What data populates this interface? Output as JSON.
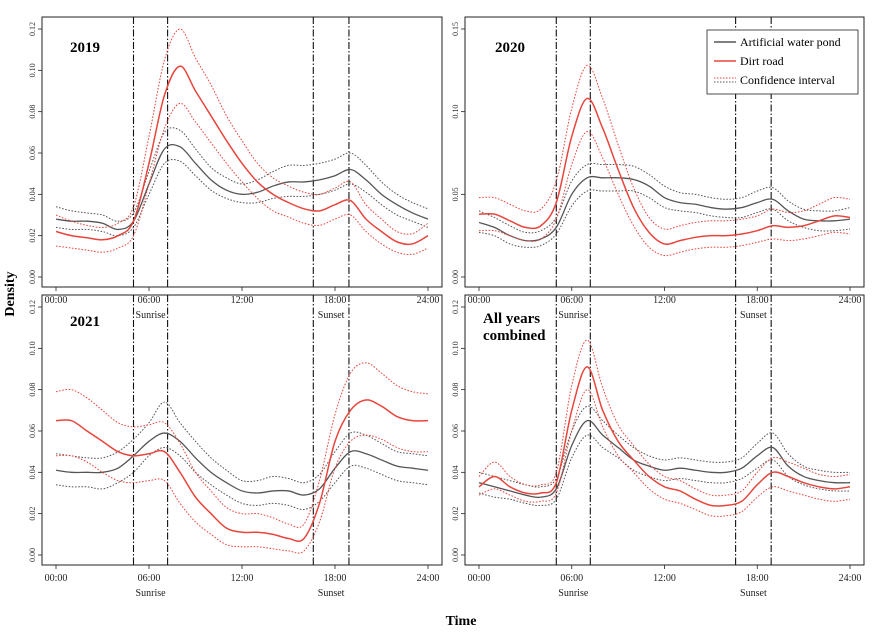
{
  "figure": {
    "ylabel": "Density",
    "xlabel": "Time"
  },
  "legend": {
    "entries": [
      {
        "label": "Artificial water pond",
        "color": "#555555",
        "style": "solid"
      },
      {
        "label": "Dirt road",
        "color": "#e8453c",
        "style": "solid"
      },
      {
        "label": "Confidence interval",
        "color": "#e8453c",
        "style": "dotted"
      }
    ]
  },
  "chart_data": [
    {
      "type": "line",
      "title": "2019",
      "xlabel": "",
      "ylabel": "Density",
      "xlim": [
        0,
        24
      ],
      "ylim": [
        0,
        0.12
      ],
      "yticks": [
        0.0,
        0.02,
        0.04,
        0.06,
        0.08,
        0.1,
        0.12
      ],
      "ytick_labels": [
        "0.00",
        "0.02",
        "0.04",
        "0.06",
        "0.08",
        "0.10",
        "0.12"
      ],
      "x_ticks": [
        0,
        6,
        12,
        18,
        24
      ],
      "x_tick_labels": [
        "00:00",
        "06:00",
        "12:00",
        "18:00",
        "24:00"
      ],
      "vlines": [
        5.0,
        7.2,
        16.6,
        18.9
      ],
      "vline_labels": [
        {
          "x": 6.1,
          "label": "Sunrise"
        },
        {
          "x": 17.75,
          "label": "Sunset"
        }
      ],
      "x": [
        0,
        1,
        2,
        3,
        4,
        5,
        6,
        7,
        8,
        9,
        10,
        11,
        12,
        13,
        14,
        15,
        16,
        17,
        18,
        19,
        20,
        21,
        22,
        23,
        24
      ],
      "series": [
        {
          "name": "Artificial water pond",
          "values": [
            0.028,
            0.027,
            0.027,
            0.026,
            0.023,
            0.027,
            0.045,
            0.062,
            0.063,
            0.055,
            0.047,
            0.042,
            0.04,
            0.041,
            0.044,
            0.046,
            0.046,
            0.047,
            0.049,
            0.052,
            0.047,
            0.04,
            0.035,
            0.031,
            0.028
          ]
        },
        {
          "name": "Artificial water pond CI lower",
          "values": [
            0.024,
            0.023,
            0.023,
            0.022,
            0.02,
            0.024,
            0.04,
            0.055,
            0.056,
            0.049,
            0.042,
            0.038,
            0.036,
            0.036,
            0.038,
            0.039,
            0.039,
            0.04,
            0.042,
            0.045,
            0.041,
            0.035,
            0.03,
            0.027,
            0.024
          ]
        },
        {
          "name": "Artificial water pond CI upper",
          "values": [
            0.034,
            0.032,
            0.031,
            0.03,
            0.027,
            0.031,
            0.051,
            0.07,
            0.071,
            0.062,
            0.053,
            0.048,
            0.045,
            0.047,
            0.051,
            0.054,
            0.054,
            0.055,
            0.057,
            0.06,
            0.054,
            0.046,
            0.04,
            0.036,
            0.033
          ]
        },
        {
          "name": "Dirt road",
          "values": [
            0.022,
            0.02,
            0.019,
            0.018,
            0.02,
            0.027,
            0.055,
            0.088,
            0.102,
            0.09,
            0.078,
            0.066,
            0.055,
            0.046,
            0.04,
            0.036,
            0.033,
            0.032,
            0.035,
            0.037,
            0.028,
            0.022,
            0.017,
            0.016,
            0.02
          ]
        },
        {
          "name": "Dirt road CI lower",
          "values": [
            0.015,
            0.014,
            0.013,
            0.012,
            0.014,
            0.02,
            0.045,
            0.072,
            0.084,
            0.075,
            0.065,
            0.055,
            0.046,
            0.038,
            0.032,
            0.029,
            0.026,
            0.025,
            0.028,
            0.03,
            0.022,
            0.016,
            0.012,
            0.011,
            0.014
          ]
        },
        {
          "name": "Dirt road CI upper",
          "values": [
            0.03,
            0.027,
            0.025,
            0.024,
            0.026,
            0.034,
            0.068,
            0.105,
            0.12,
            0.106,
            0.093,
            0.078,
            0.066,
            0.055,
            0.048,
            0.044,
            0.041,
            0.04,
            0.043,
            0.046,
            0.035,
            0.028,
            0.022,
            0.021,
            0.026
          ]
        }
      ]
    },
    {
      "type": "line",
      "title": "2020",
      "xlabel": "",
      "ylabel": "",
      "xlim": [
        0,
        24
      ],
      "ylim": [
        0,
        0.15
      ],
      "yticks": [
        0.0,
        0.05,
        0.1,
        0.15
      ],
      "ytick_labels": [
        "0.00",
        "0.05",
        "0.10",
        "0.15"
      ],
      "x_ticks": [
        0,
        6,
        12,
        18,
        24
      ],
      "x_tick_labels": [
        "00:00",
        "06:00",
        "12:00",
        "18:00",
        "24:00"
      ],
      "vlines": [
        5.0,
        7.2,
        16.6,
        18.9
      ],
      "vline_labels": [
        {
          "x": 6.1,
          "label": "Sunrise"
        },
        {
          "x": 17.75,
          "label": "Sunset"
        }
      ],
      "x": [
        0,
        1,
        2,
        3,
        4,
        5,
        6,
        7,
        8,
        9,
        10,
        11,
        12,
        13,
        14,
        15,
        16,
        17,
        18,
        19,
        20,
        21,
        22,
        23,
        24
      ],
      "series": [
        {
          "name": "Artificial water pond",
          "values": [
            0.033,
            0.03,
            0.025,
            0.022,
            0.023,
            0.03,
            0.05,
            0.06,
            0.06,
            0.06,
            0.059,
            0.055,
            0.048,
            0.045,
            0.044,
            0.042,
            0.041,
            0.042,
            0.045,
            0.047,
            0.04,
            0.035,
            0.034,
            0.034,
            0.035
          ]
        },
        {
          "name": "Artificial water pond CI lower",
          "values": [
            0.027,
            0.025,
            0.02,
            0.018,
            0.019,
            0.026,
            0.043,
            0.052,
            0.052,
            0.052,
            0.052,
            0.048,
            0.042,
            0.04,
            0.039,
            0.037,
            0.036,
            0.036,
            0.039,
            0.041,
            0.034,
            0.03,
            0.028,
            0.028,
            0.029
          ]
        },
        {
          "name": "Artificial water pond CI upper",
          "values": [
            0.04,
            0.036,
            0.031,
            0.027,
            0.028,
            0.036,
            0.058,
            0.068,
            0.068,
            0.068,
            0.067,
            0.062,
            0.055,
            0.051,
            0.05,
            0.048,
            0.047,
            0.048,
            0.052,
            0.054,
            0.046,
            0.041,
            0.04,
            0.04,
            0.042
          ]
        },
        {
          "name": "Dirt road",
          "values": [
            0.038,
            0.038,
            0.034,
            0.03,
            0.031,
            0.045,
            0.085,
            0.108,
            0.09,
            0.065,
            0.042,
            0.027,
            0.02,
            0.022,
            0.024,
            0.025,
            0.025,
            0.026,
            0.028,
            0.031,
            0.03,
            0.031,
            0.034,
            0.037,
            0.036
          ]
        },
        {
          "name": "Dirt road CI lower",
          "values": [
            0.028,
            0.028,
            0.025,
            0.022,
            0.023,
            0.035,
            0.068,
            0.088,
            0.072,
            0.05,
            0.031,
            0.018,
            0.013,
            0.015,
            0.017,
            0.018,
            0.018,
            0.019,
            0.021,
            0.023,
            0.022,
            0.023,
            0.025,
            0.027,
            0.026
          ]
        },
        {
          "name": "Dirt road CI upper",
          "values": [
            0.048,
            0.048,
            0.044,
            0.04,
            0.041,
            0.058,
            0.102,
            0.128,
            0.108,
            0.08,
            0.054,
            0.036,
            0.029,
            0.031,
            0.033,
            0.034,
            0.034,
            0.035,
            0.037,
            0.041,
            0.039,
            0.04,
            0.044,
            0.048,
            0.047
          ]
        }
      ]
    },
    {
      "type": "line",
      "title": "2021",
      "xlabel": "",
      "ylabel": "Density",
      "xlim": [
        0,
        24
      ],
      "ylim": [
        0,
        0.12
      ],
      "yticks": [
        0.0,
        0.02,
        0.04,
        0.06,
        0.08,
        0.1,
        0.12
      ],
      "ytick_labels": [
        "0.00",
        "0.02",
        "0.04",
        "0.06",
        "0.08",
        "0.10",
        "0.12"
      ],
      "x_ticks": [
        0,
        6,
        12,
        18,
        24
      ],
      "x_tick_labels": [
        "00:00",
        "06:00",
        "12:00",
        "18:00",
        "24:00"
      ],
      "vlines": [
        5.0,
        7.2,
        16.6,
        18.9
      ],
      "vline_labels": [
        {
          "x": 6.1,
          "label": "Sunrise"
        },
        {
          "x": 17.75,
          "label": "Sunset"
        }
      ],
      "x": [
        0,
        1,
        2,
        3,
        4,
        5,
        6,
        7,
        8,
        9,
        10,
        11,
        12,
        13,
        14,
        15,
        16,
        17,
        18,
        19,
        20,
        21,
        22,
        23,
        24
      ],
      "series": [
        {
          "name": "Artificial water pond",
          "values": [
            0.041,
            0.04,
            0.04,
            0.04,
            0.042,
            0.048,
            0.055,
            0.059,
            0.055,
            0.047,
            0.04,
            0.035,
            0.031,
            0.03,
            0.031,
            0.031,
            0.029,
            0.032,
            0.042,
            0.05,
            0.049,
            0.046,
            0.043,
            0.042,
            0.041
          ]
        },
        {
          "name": "Artificial water pond CI lower",
          "values": [
            0.034,
            0.033,
            0.033,
            0.032,
            0.035,
            0.04,
            0.048,
            0.052,
            0.048,
            0.04,
            0.034,
            0.029,
            0.025,
            0.024,
            0.025,
            0.024,
            0.022,
            0.026,
            0.035,
            0.043,
            0.042,
            0.039,
            0.036,
            0.035,
            0.034
          ]
        },
        {
          "name": "Artificial water pond CI upper",
          "values": [
            0.049,
            0.048,
            0.047,
            0.047,
            0.05,
            0.056,
            0.064,
            0.074,
            0.064,
            0.055,
            0.047,
            0.041,
            0.036,
            0.036,
            0.038,
            0.037,
            0.035,
            0.039,
            0.05,
            0.059,
            0.058,
            0.054,
            0.05,
            0.049,
            0.048
          ]
        },
        {
          "name": "Dirt road",
          "values": [
            0.065,
            0.065,
            0.06,
            0.055,
            0.05,
            0.048,
            0.049,
            0.05,
            0.04,
            0.028,
            0.02,
            0.013,
            0.011,
            0.011,
            0.01,
            0.008,
            0.008,
            0.025,
            0.055,
            0.07,
            0.075,
            0.072,
            0.067,
            0.065,
            0.065
          ]
        },
        {
          "name": "Dirt road CI lower",
          "values": [
            0.048,
            0.048,
            0.045,
            0.04,
            0.036,
            0.035,
            0.036,
            0.036,
            0.025,
            0.016,
            0.01,
            0.005,
            0.004,
            0.004,
            0.003,
            0.002,
            0.002,
            0.016,
            0.042,
            0.055,
            0.058,
            0.056,
            0.052,
            0.05,
            0.05
          ]
        },
        {
          "name": "Dirt road CI upper",
          "values": [
            0.079,
            0.08,
            0.076,
            0.07,
            0.064,
            0.062,
            0.063,
            0.064,
            0.054,
            0.04,
            0.031,
            0.023,
            0.02,
            0.02,
            0.018,
            0.015,
            0.015,
            0.036,
            0.068,
            0.088,
            0.093,
            0.088,
            0.082,
            0.079,
            0.078
          ]
        }
      ]
    },
    {
      "type": "line",
      "title": "All years combined",
      "xlabel": "",
      "ylabel": "",
      "xlim": [
        0,
        24
      ],
      "ylim": [
        0,
        0.12
      ],
      "yticks": [
        0.0,
        0.02,
        0.04,
        0.06,
        0.08,
        0.1,
        0.12
      ],
      "ytick_labels": [
        "0.00",
        "0.02",
        "0.04",
        "0.06",
        "0.08",
        "0.10",
        "0.12"
      ],
      "x_ticks": [
        0,
        6,
        12,
        18,
        24
      ],
      "x_tick_labels": [
        "00:00",
        "06:00",
        "12:00",
        "18:00",
        "24:00"
      ],
      "vlines": [
        5.0,
        7.2,
        16.6,
        18.9
      ],
      "vline_labels": [
        {
          "x": 6.1,
          "label": "Sunrise"
        },
        {
          "x": 17.75,
          "label": "Sunset"
        }
      ],
      "x": [
        0,
        1,
        2,
        3,
        4,
        5,
        6,
        7,
        8,
        9,
        10,
        11,
        12,
        13,
        14,
        15,
        16,
        17,
        18,
        19,
        20,
        21,
        22,
        23,
        24
      ],
      "series": [
        {
          "name": "Artificial water pond",
          "values": [
            0.035,
            0.033,
            0.031,
            0.029,
            0.028,
            0.032,
            0.053,
            0.065,
            0.058,
            0.052,
            0.046,
            0.043,
            0.041,
            0.042,
            0.041,
            0.04,
            0.04,
            0.042,
            0.048,
            0.052,
            0.043,
            0.038,
            0.036,
            0.035,
            0.035
          ]
        },
        {
          "name": "Artificial water pond CI lower",
          "values": [
            0.03,
            0.028,
            0.027,
            0.025,
            0.024,
            0.027,
            0.047,
            0.058,
            0.052,
            0.047,
            0.041,
            0.038,
            0.036,
            0.037,
            0.036,
            0.035,
            0.035,
            0.037,
            0.042,
            0.046,
            0.038,
            0.034,
            0.032,
            0.031,
            0.031
          ]
        },
        {
          "name": "Artificial water pond CI upper",
          "values": [
            0.04,
            0.038,
            0.036,
            0.034,
            0.033,
            0.037,
            0.06,
            0.072,
            0.065,
            0.058,
            0.052,
            0.048,
            0.046,
            0.047,
            0.046,
            0.045,
            0.045,
            0.047,
            0.054,
            0.059,
            0.049,
            0.043,
            0.041,
            0.04,
            0.04
          ]
        },
        {
          "name": "Dirt road",
          "values": [
            0.033,
            0.038,
            0.033,
            0.03,
            0.03,
            0.035,
            0.07,
            0.091,
            0.07,
            0.055,
            0.046,
            0.038,
            0.033,
            0.031,
            0.027,
            0.024,
            0.024,
            0.026,
            0.034,
            0.04,
            0.038,
            0.035,
            0.033,
            0.032,
            0.033
          ]
        },
        {
          "name": "Dirt road CI lower",
          "values": [
            0.029,
            0.032,
            0.029,
            0.026,
            0.026,
            0.03,
            0.06,
            0.08,
            0.062,
            0.048,
            0.04,
            0.032,
            0.027,
            0.025,
            0.022,
            0.019,
            0.019,
            0.021,
            0.028,
            0.033,
            0.031,
            0.029,
            0.027,
            0.026,
            0.027
          ]
        },
        {
          "name": "Dirt road CI upper",
          "values": [
            0.038,
            0.045,
            0.038,
            0.034,
            0.034,
            0.04,
            0.082,
            0.104,
            0.081,
            0.063,
            0.053,
            0.044,
            0.038,
            0.036,
            0.032,
            0.029,
            0.029,
            0.031,
            0.04,
            0.047,
            0.045,
            0.042,
            0.039,
            0.038,
            0.039
          ]
        }
      ]
    }
  ]
}
